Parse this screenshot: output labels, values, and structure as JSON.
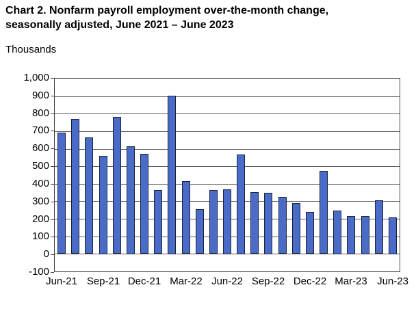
{
  "title": {
    "line1": "Chart 2. Nonfarm payroll employment over-the-month change,",
    "line2": "seasonally adjusted, June 2021 – June 2023"
  },
  "units_label": "Thousands",
  "chart_data": {
    "type": "bar",
    "title": "Chart 2. Nonfarm payroll employment over-the-month change, seasonally adjusted, June 2021 – June 2023",
    "ylabel": "Thousands",
    "ylim": [
      -100,
      1000
    ],
    "y_tick_step": 100,
    "y_tick_labels": [
      "1,000",
      "900",
      "800",
      "700",
      "600",
      "500",
      "400",
      "300",
      "200",
      "100",
      "0",
      "-100"
    ],
    "categories": [
      "Jun-21",
      "Jul-21",
      "Aug-21",
      "Sep-21",
      "Oct-21",
      "Nov-21",
      "Dec-21",
      "Jan-22",
      "Feb-22",
      "Mar-22",
      "Apr-22",
      "May-22",
      "Jun-22",
      "Jul-22",
      "Aug-22",
      "Sep-22",
      "Oct-22",
      "Nov-22",
      "Dec-22",
      "Jan-23",
      "Feb-23",
      "Mar-23",
      "Apr-23",
      "May-23",
      "Jun-23"
    ],
    "values": [
      690,
      770,
      665,
      560,
      780,
      615,
      570,
      364,
      904,
      414,
      254,
      364,
      370,
      568,
      352,
      350,
      324,
      290,
      239,
      472,
      248,
      217,
      217,
      306,
      209
    ],
    "x_tick_labels": [
      "Jun-21",
      "Sep-21",
      "Dec-21",
      "Mar-22",
      "Jun-22",
      "Sep-22",
      "Dec-22",
      "Mar-23",
      "Jun-23"
    ],
    "x_tick_indices": [
      0,
      3,
      6,
      9,
      12,
      15,
      18,
      21,
      24
    ],
    "grid": true,
    "legend": "none",
    "colors": {
      "bar_fill": "#4a6cc8",
      "bar_border": "#1a2238",
      "gridline": "#595959",
      "plot_border": "#404040",
      "text": "#000000",
      "background": "#ffffff"
    }
  }
}
